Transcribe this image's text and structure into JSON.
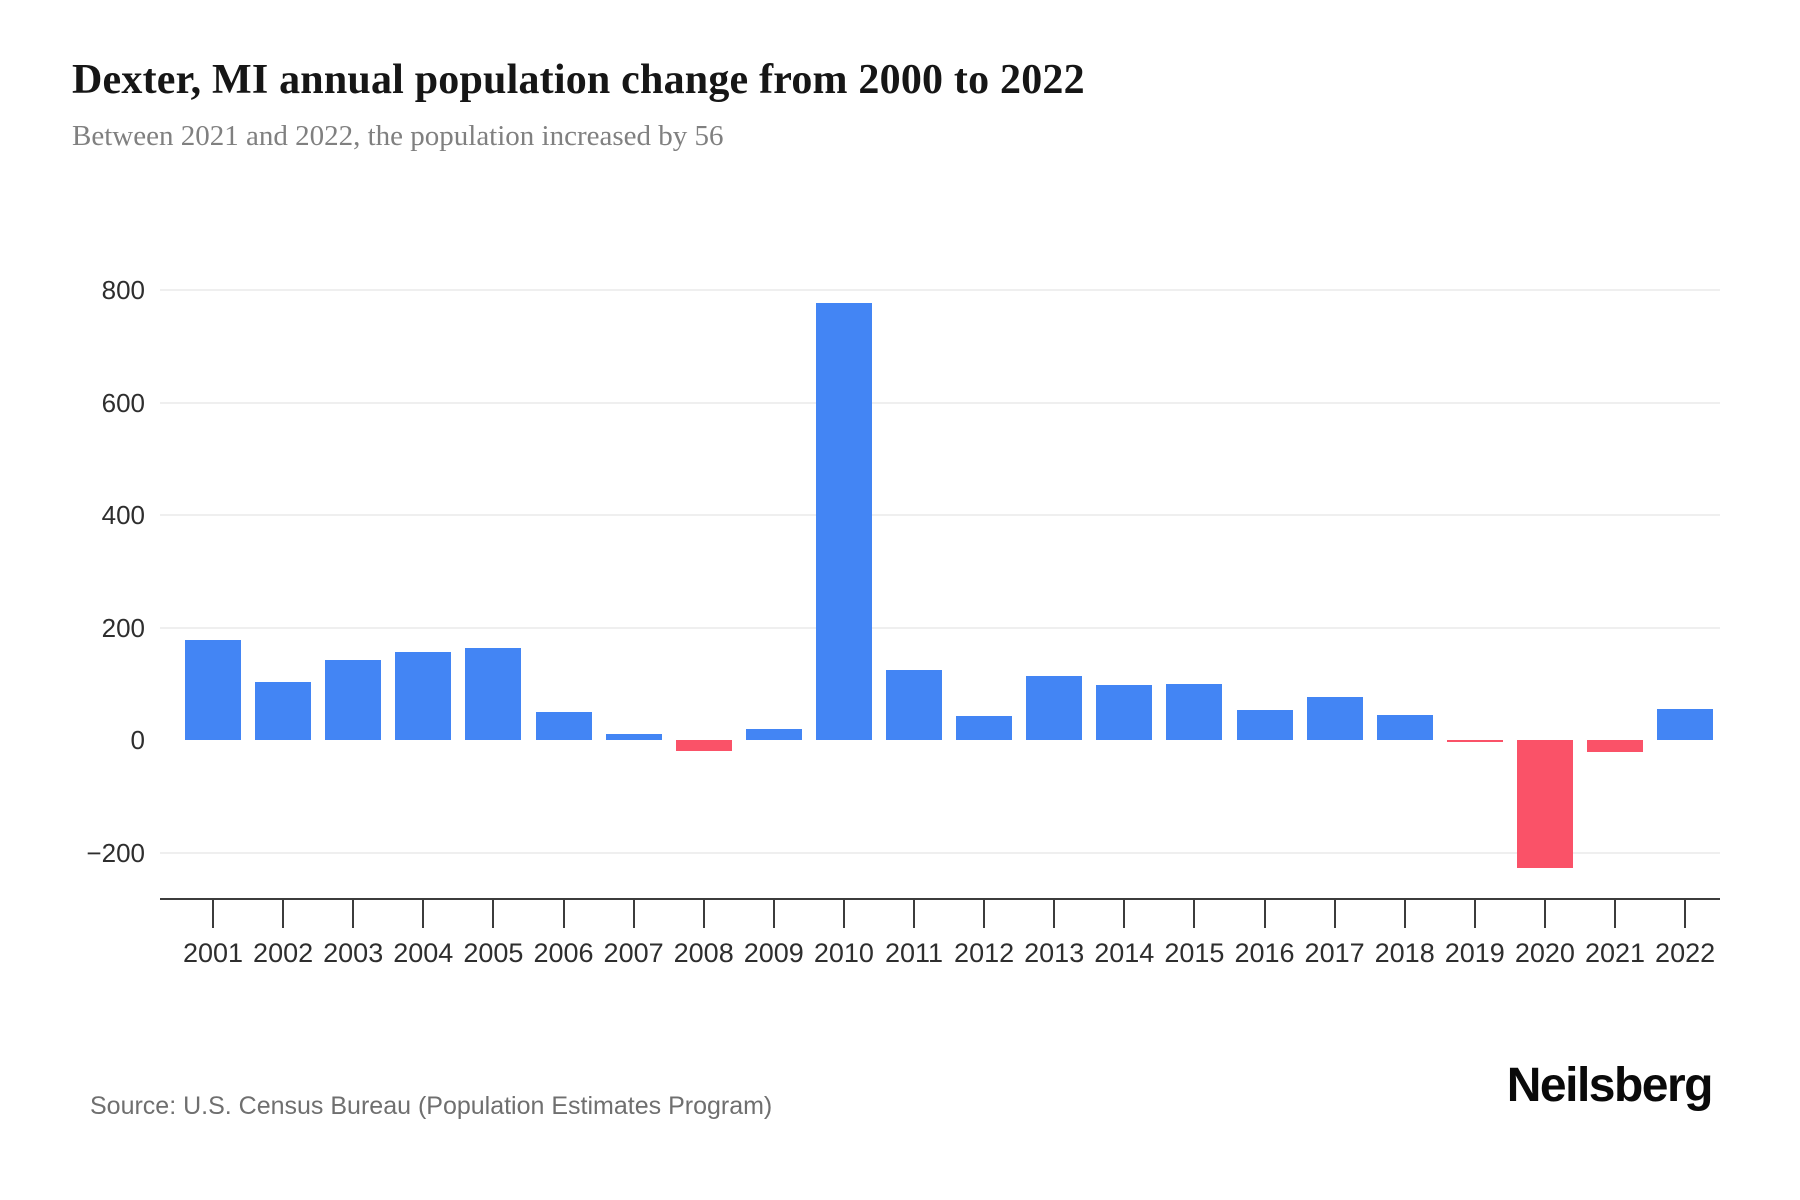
{
  "header": {
    "title": "Dexter, MI annual population change from 2000 to 2022",
    "subtitle": "Between 2021 and 2022, the population increased by 56"
  },
  "chart_data": {
    "type": "bar",
    "title": "Dexter, MI annual population change from 2000 to 2022",
    "xlabel": "",
    "ylabel": "",
    "categories": [
      "2001",
      "2002",
      "2003",
      "2004",
      "2005",
      "2006",
      "2007",
      "2008",
      "2009",
      "2010",
      "2011",
      "2012",
      "2013",
      "2014",
      "2015",
      "2016",
      "2017",
      "2018",
      "2019",
      "2020",
      "2021",
      "2022"
    ],
    "values": [
      178,
      103,
      142,
      156,
      164,
      49,
      10,
      -19,
      20,
      777,
      125,
      42,
      113,
      98,
      100,
      53,
      77,
      44,
      -3,
      -228,
      -21,
      56
    ],
    "ylim": [
      -280,
      900
    ],
    "grid": "horizontal",
    "legend": "none",
    "positive_color": "#4385F4",
    "negative_color": "#FA5268",
    "y_axis": {
      "tick_labels": [
        "800",
        "600",
        "400",
        "200",
        "0",
        "−200"
      ],
      "tick_values": [
        800,
        600,
        400,
        200,
        0,
        -200
      ],
      "grid_values": [
        800,
        600,
        400,
        200,
        -200
      ]
    }
  },
  "footer": {
    "source": "Source: U.S. Census Bureau (Population Estimates Program)",
    "brand": "Neilsberg"
  }
}
